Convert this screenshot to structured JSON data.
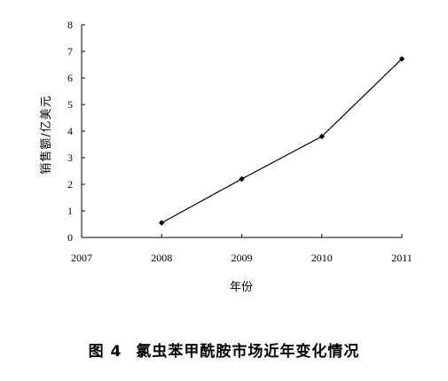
{
  "chart_data": {
    "type": "line",
    "x": [
      2008,
      2009,
      2010,
      2011
    ],
    "series": [
      {
        "values": [
          0.55,
          2.2,
          3.8,
          6.72
        ]
      }
    ],
    "xticks": [
      "2007",
      "2008",
      "2009",
      "2010",
      "2011"
    ],
    "yticks": [
      "0",
      "1",
      "2",
      "3",
      "4",
      "5",
      "6",
      "7",
      "8"
    ],
    "xlim": [
      2007,
      2011
    ],
    "ylim": [
      0,
      8
    ],
    "xlabel": "年份",
    "ylabel": "销售额/亿美元",
    "grid": false,
    "line_color": "#000000"
  },
  "caption": {
    "figure_number": "图 4",
    "title": "氯虫苯甲酰胺市场近年变化情况"
  }
}
